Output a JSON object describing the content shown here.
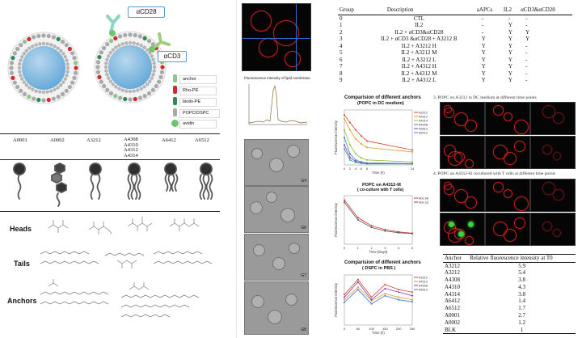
{
  "liposome_legend": {
    "labels": [
      "αCD28",
      "αCD3"
    ],
    "items": [
      {
        "label": "anchor",
        "color": "#8ec48d"
      },
      {
        "label": "Rho-PE",
        "color": "#d12c2c"
      },
      {
        "label": "biotin-PE",
        "color": "#2c8b55"
      },
      {
        "label": "POPC/DSPC",
        "color": "#a9a9a9"
      },
      {
        "label": "avidin",
        "color": "#73c46d"
      }
    ]
  },
  "anchors_row": [
    "A0001",
    "A0002",
    "A3212",
    "A4308\nA4310\nA4312\nA4314",
    "A6412",
    "A6512"
  ],
  "row_labels": [
    "Heads",
    "Tails",
    "Anchors"
  ],
  "chart_titles": {
    "membrane": "Fluorescence intensity of lipid membrane",
    "comparison_dc": "Comparision of different anchors",
    "comparison_dc_sub": "(POPC in DC medium)",
    "coculture": "POPC on A4312-M",
    "coculture_sub": "( co-culture with T cells)",
    "comparison_pbs": "Comparision of different anchors",
    "comparison_pbs_sub": "( DSPC in PBS )"
  },
  "micro_labels": [
    "G4",
    "G6",
    "G7",
    "G8"
  ],
  "captions": {
    "c3": "3. POPC on A3212 in DC medium at different time points",
    "c4": "4. POPC on A4312-H cocultured with T cells at different time points"
  },
  "group_table": {
    "headers": [
      "Group",
      "Description",
      "aAPCs",
      "IL2",
      "αCD3&αCD28"
    ],
    "rows": [
      [
        "0",
        "CTL",
        "-",
        "-",
        "-"
      ],
      [
        "1",
        "IL2",
        "-",
        "Y",
        "-"
      ],
      [
        "2",
        "IL2 + αCD3&αCD28",
        "-",
        "Y",
        "Y"
      ],
      [
        "3",
        "IL2 + αCD3 &αCD28 + A3212 B",
        "Y",
        "Y",
        "Y"
      ],
      [
        "4",
        "IL2 + A3212 H",
        "Y",
        "Y",
        "-"
      ],
      [
        "5",
        "IL2 + A3212 M",
        "Y",
        "Y",
        "-"
      ],
      [
        "6",
        "IL2 + A3212 L",
        "Y",
        "Y",
        "-"
      ],
      [
        "7",
        "IL2 + A4312 H",
        "Y",
        "Y",
        "-"
      ],
      [
        "8",
        "IL2 + A4312 M",
        "Y",
        "Y",
        "-"
      ],
      [
        "9",
        "IL2 + A4312 L",
        "Y",
        "Y",
        "-"
      ]
    ]
  },
  "anchor_table": {
    "headers": [
      "Anchor",
      "Relative fluorescence intensity at T0"
    ],
    "rows": [
      [
        "A3212",
        "5.9"
      ],
      [
        "A3212",
        "5.4"
      ],
      [
        "A4308",
        "3.8"
      ],
      [
        "A4310",
        "4.3"
      ],
      [
        "A4314",
        "3.8"
      ],
      [
        "A6412",
        "1.4"
      ],
      [
        "A6512",
        "1.7"
      ],
      [
        "A0001",
        "2.7"
      ],
      [
        "A0002",
        "1.2"
      ],
      [
        "BLK",
        "1"
      ]
    ]
  },
  "chart_data": [
    {
      "type": "line",
      "title": "Comparision of different anchors",
      "subtitle": "(POPC in DC medium)",
      "xlabel": "Time (h)",
      "ylabel": "Fluorescence intensity",
      "x": [
        0,
        2,
        4,
        6,
        8,
        24
      ],
      "series": [
        {
          "name": "A3212",
          "color": "#d8432b",
          "values": [
            1.0,
            0.85,
            0.7,
            0.58,
            0.48,
            0.3
          ]
        },
        {
          "name": "A4312",
          "color": "#e29b29",
          "values": [
            0.92,
            0.7,
            0.52,
            0.42,
            0.35,
            0.26
          ]
        },
        {
          "name": "A4314",
          "color": "#8fbf2d",
          "values": [
            0.7,
            0.4,
            0.22,
            0.14,
            0.1,
            0.06
          ]
        },
        {
          "name": "A4308",
          "color": "#3a7bd5",
          "values": [
            0.55,
            0.22,
            0.1,
            0.06,
            0.04,
            0.03
          ]
        },
        {
          "name": "A6512",
          "color": "#7b3fb3",
          "values": [
            0.4,
            0.15,
            0.07,
            0.05,
            0.03,
            0.02
          ]
        },
        {
          "name": "A6412",
          "color": "#2aa39a",
          "values": [
            0.32,
            0.1,
            0.05,
            0.03,
            0.02,
            0.02
          ]
        }
      ]
    },
    {
      "type": "line",
      "title": "POPC on A4312-M",
      "subtitle": "( co-culture with T cells)",
      "xlabel": "Time (Days)",
      "ylabel": "Fluorescence intensity",
      "x": [
        0,
        1,
        2,
        3,
        4,
        5
      ],
      "series": [
        {
          "name": "Abs (4)",
          "color": "#cc3333",
          "values": [
            1.0,
            0.6,
            0.42,
            0.33,
            0.28,
            0.25
          ]
        },
        {
          "name": "Abs (2)",
          "color": "#555555",
          "values": [
            0.95,
            0.55,
            0.38,
            0.3,
            0.26,
            0.24
          ]
        }
      ]
    },
    {
      "type": "line",
      "title": "Comparision of different anchors",
      "subtitle": "( DSPC in PBS )",
      "xlabel": "Time (h)",
      "ylabel": "Fluorescence intensity",
      "x": [
        0,
        50,
        100,
        150,
        200,
        250
      ],
      "series": [
        {
          "name": "A3212",
          "color": "#d8432b",
          "values": [
            0.6,
            0.9,
            0.55,
            0.8,
            0.7,
            0.65
          ]
        },
        {
          "name": "A4312",
          "color": "#e29b29",
          "values": [
            0.5,
            0.75,
            0.48,
            0.62,
            0.55,
            0.5
          ]
        },
        {
          "name": "A4308",
          "color": "#7b3fb3",
          "values": [
            0.55,
            0.85,
            0.5,
            0.72,
            0.65,
            0.58
          ]
        },
        {
          "name": "A6512",
          "color": "#3a7bd5",
          "values": [
            0.45,
            0.7,
            0.42,
            0.58,
            0.5,
            0.46
          ]
        }
      ]
    }
  ]
}
